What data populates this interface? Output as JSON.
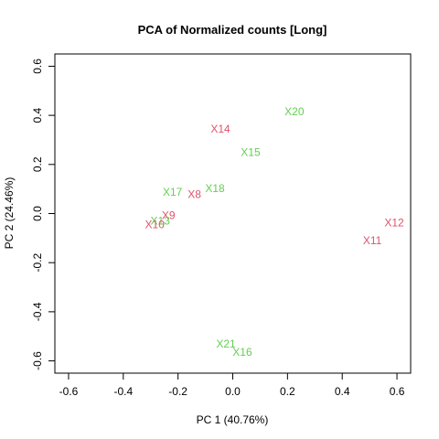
{
  "chart_data": {
    "type": "scatter",
    "title": "PCA of Normalized counts [Long]",
    "xlabel": "PC 1 (40.76%)",
    "ylabel": "PC 2 (24.46%)",
    "xlim": [
      -0.65,
      0.65
    ],
    "ylim": [
      -0.65,
      0.65
    ],
    "x_ticks": [
      -0.6,
      -0.4,
      -0.2,
      0.0,
      0.2,
      0.4,
      0.6
    ],
    "x_tick_labels": [
      "-0.6",
      "-0.4",
      "-0.2",
      "0.0",
      "0.2",
      "0.4",
      "0.6"
    ],
    "y_ticks": [
      -0.6,
      -0.4,
      -0.2,
      0.0,
      0.2,
      0.4,
      0.6
    ],
    "y_tick_labels": [
      "-0.6",
      "-0.4",
      "-0.2",
      "0.0",
      "0.2",
      "0.4",
      "0.6"
    ],
    "grid": false,
    "colors": {
      "red": "#DF536B",
      "green": "#61D04F"
    },
    "points": [
      {
        "label": "X20",
        "x": 0.225,
        "y": 0.415,
        "color": "green"
      },
      {
        "label": "X14",
        "x": -0.045,
        "y": 0.345,
        "color": "red"
      },
      {
        "label": "X15",
        "x": 0.065,
        "y": 0.25,
        "color": "green"
      },
      {
        "label": "X17",
        "x": -0.22,
        "y": 0.088,
        "color": "green"
      },
      {
        "label": "X18",
        "x": -0.065,
        "y": 0.103,
        "color": "green"
      },
      {
        "label": "X8",
        "x": -0.14,
        "y": 0.078,
        "color": "red"
      },
      {
        "label": "X9",
        "x": -0.235,
        "y": -0.008,
        "color": "red"
      },
      {
        "label": "X13",
        "x": -0.265,
        "y": -0.03,
        "color": "green"
      },
      {
        "label": "X10",
        "x": -0.285,
        "y": -0.045,
        "color": "red"
      },
      {
        "label": "X12",
        "x": 0.59,
        "y": -0.038,
        "color": "red"
      },
      {
        "label": "X11",
        "x": 0.51,
        "y": -0.11,
        "color": "red"
      },
      {
        "label": "X21",
        "x": -0.025,
        "y": -0.53,
        "color": "green"
      },
      {
        "label": "X16",
        "x": 0.035,
        "y": -0.565,
        "color": "green"
      }
    ]
  }
}
